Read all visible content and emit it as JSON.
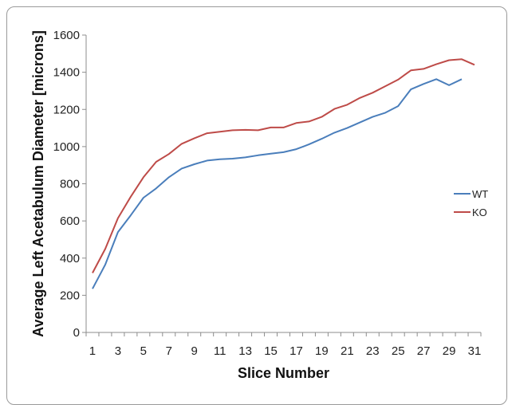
{
  "chart_data": {
    "type": "line",
    "title": "",
    "xlabel": "Slice Number",
    "ylabel": "Average Left Acetabulum Diameter [microns]",
    "x": [
      1,
      2,
      3,
      4,
      5,
      6,
      7,
      8,
      9,
      10,
      11,
      12,
      13,
      14,
      15,
      16,
      17,
      18,
      19,
      20,
      21,
      22,
      23,
      24,
      25,
      26,
      27,
      28,
      29,
      30,
      31
    ],
    "x_tick_labels": [
      "1",
      "3",
      "5",
      "7",
      "9",
      "11",
      "13",
      "15",
      "17",
      "19",
      "21",
      "23",
      "25",
      "27",
      "29",
      "31"
    ],
    "y_tick_labels": [
      "0",
      "200",
      "400",
      "600",
      "800",
      "1000",
      "1200",
      "1400",
      "1600"
    ],
    "xlim": [
      0.5,
      31.5
    ],
    "ylim": [
      0,
      1600
    ],
    "grid": false,
    "legend_position": "right",
    "series": [
      {
        "name": "WT",
        "color": "#4a7ebb",
        "values": [
          235,
          365,
          540,
          630,
          725,
          775,
          835,
          882,
          905,
          925,
          932,
          935,
          942,
          953,
          962,
          970,
          986,
          1012,
          1042,
          1075,
          1100,
          1130,
          1160,
          1182,
          1218,
          1308,
          1337,
          1363,
          1330,
          1363,
          null
        ]
      },
      {
        "name": "KO",
        "color": "#be4b48",
        "values": [
          320,
          450,
          615,
          730,
          835,
          918,
          960,
          1015,
          1045,
          1072,
          1080,
          1088,
          1090,
          1088,
          1103,
          1103,
          1127,
          1135,
          1160,
          1203,
          1225,
          1262,
          1290,
          1325,
          1360,
          1410,
          1418,
          1443,
          1465,
          1470,
          1440
        ]
      }
    ]
  }
}
